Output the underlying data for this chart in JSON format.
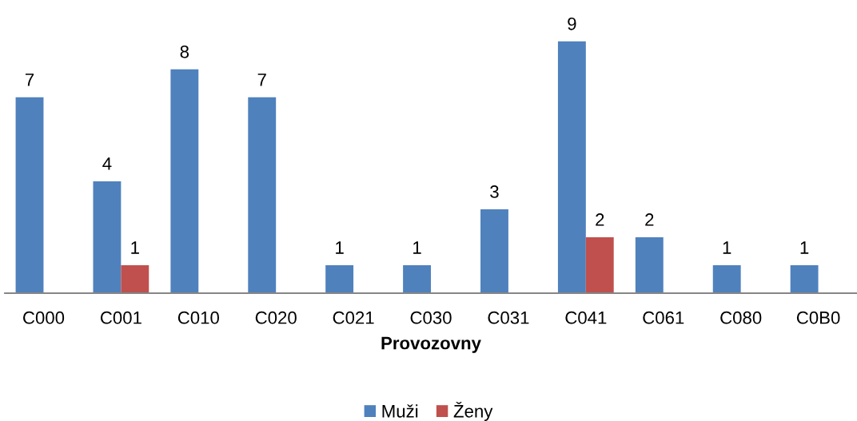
{
  "chart_data": {
    "type": "bar",
    "xlabel": "Provozovny",
    "categories": [
      "C000",
      "C001",
      "C010",
      "C020",
      "C021",
      "C030",
      "C031",
      "C041",
      "C061",
      "C080",
      "C0B0"
    ],
    "series": [
      {
        "name": "Muži",
        "color": "#4f81bd",
        "values": [
          7,
          4,
          8,
          7,
          1,
          1,
          3,
          9,
          2,
          1,
          1
        ]
      },
      {
        "name": "Ženy",
        "color": "#c0504d",
        "values": [
          null,
          1,
          null,
          null,
          null,
          null,
          null,
          2,
          null,
          null,
          null
        ]
      }
    ],
    "data_labels": true,
    "legend": "bottom",
    "tick_labels": "x"
  }
}
